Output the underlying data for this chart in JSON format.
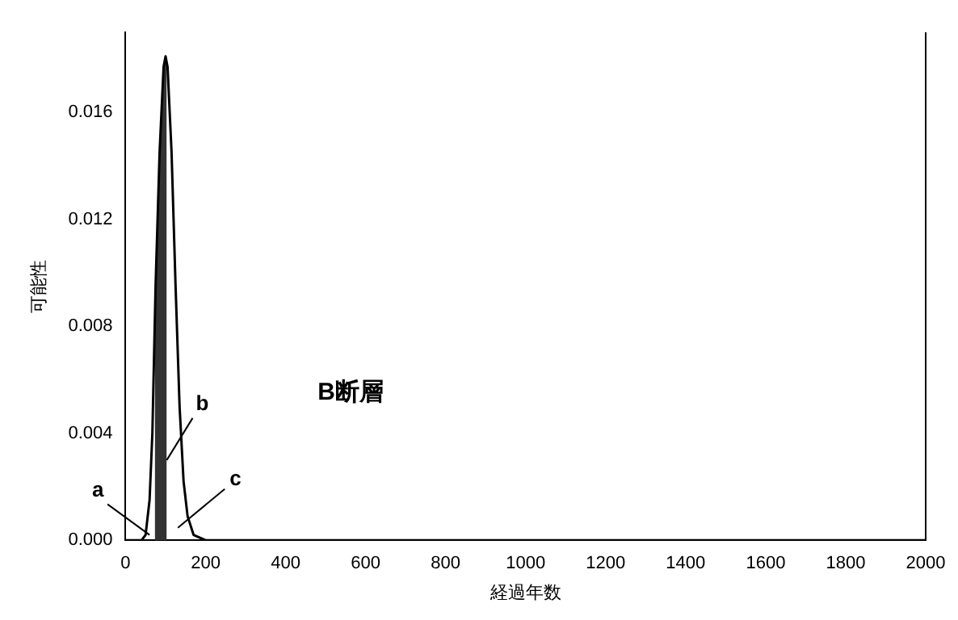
{
  "chart_data": {
    "type": "line",
    "xlabel": "経過年数",
    "ylabel": "可能性",
    "series": [
      {
        "color": "#000000",
        "x": [
          0,
          40,
          50,
          60,
          67,
          75,
          85,
          95,
          100,
          105,
          115,
          125,
          135,
          145,
          155,
          170,
          200,
          2000
        ],
        "values": [
          0,
          0,
          0.0002,
          0.0015,
          0.004,
          0.0095,
          0.0145,
          0.0177,
          0.0181,
          0.0177,
          0.0145,
          0.0095,
          0.005,
          0.0022,
          0.0009,
          0.0002,
          0,
          0
        ]
      },
      {
        "type": "area",
        "color": "#333333",
        "x": [
          73,
          75,
          85,
          95,
          100,
          103
        ],
        "values": [
          0.0083,
          0.0095,
          0.0145,
          0.0177,
          0.0181,
          0.018
        ]
      }
    ],
    "xlim": [
      0,
      2000
    ],
    "xticks": [
      0,
      200,
      400,
      600,
      800,
      1000,
      1200,
      1400,
      1600,
      1800,
      2000
    ],
    "ylim": [
      0,
      0.019
    ],
    "yticks": [
      {
        "value": 0,
        "label": "0.000"
      },
      {
        "value": 0.004,
        "label": "0.004"
      },
      {
        "value": 0.008,
        "label": "0.008"
      },
      {
        "value": 0.012,
        "label": "0.012"
      },
      {
        "value": 0.016,
        "label": "0.016"
      }
    ],
    "grid": false,
    "legend": false,
    "marker": "none",
    "line_style": "solid",
    "annotations": [
      "B断層",
      {
        "text": "a",
        "x": 60,
        "y": 0.0002
      },
      {
        "text": "b",
        "x": 103,
        "y": 0.003
      },
      "c"
    ]
  }
}
